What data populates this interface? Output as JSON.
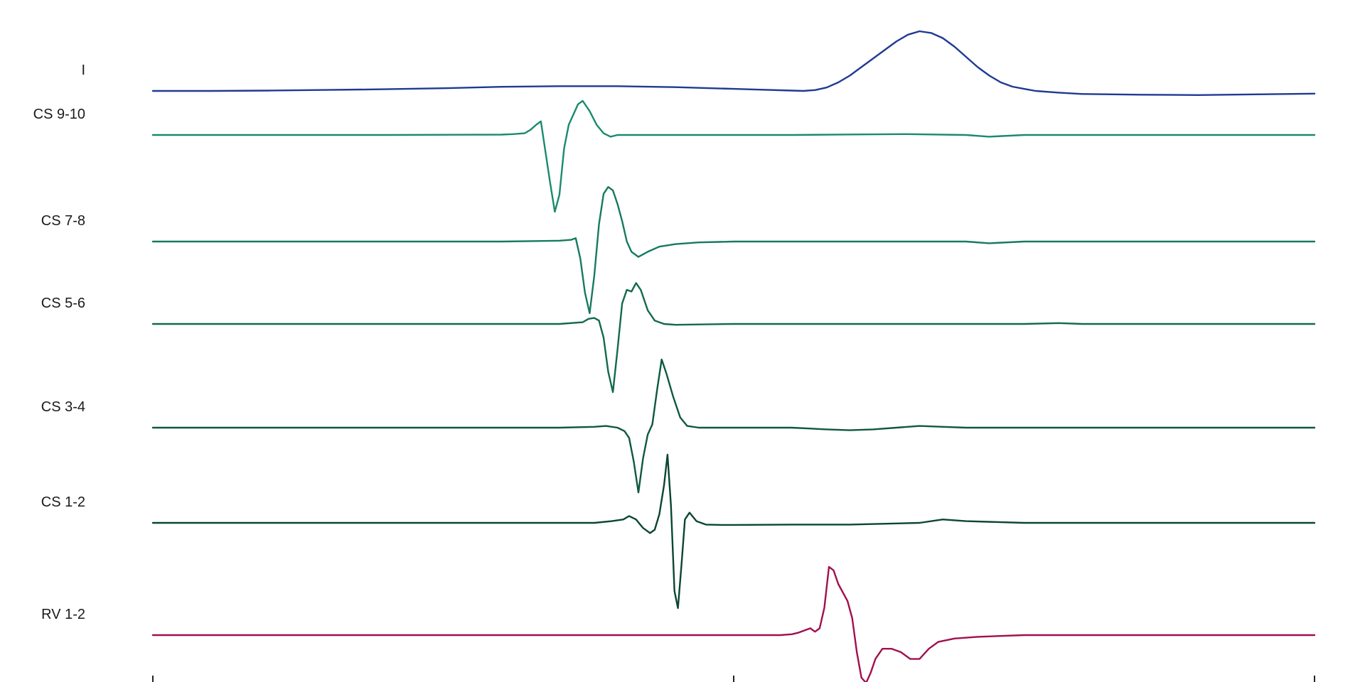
{
  "chart_data": {
    "type": "line",
    "title": "",
    "xlabel": "",
    "ylabel": "",
    "x_range": [
      0,
      1
    ],
    "x_ticks": [
      0,
      0.5,
      1
    ],
    "grid": false,
    "legend": "none",
    "tracks": [
      {
        "name": "I",
        "color": "#1f3a93",
        "points": [
          [
            0.0,
            0.0
          ],
          [
            0.05,
            0.0
          ],
          [
            0.1,
            0.2
          ],
          [
            0.15,
            0.6
          ],
          [
            0.2,
            1.0
          ],
          [
            0.25,
            1.6
          ],
          [
            0.3,
            2.4
          ],
          [
            0.35,
            2.8
          ],
          [
            0.4,
            2.8
          ],
          [
            0.45,
            2.2
          ],
          [
            0.5,
            1.2
          ],
          [
            0.52,
            0.8
          ],
          [
            0.55,
            0.2
          ],
          [
            0.56,
            0.0
          ],
          [
            0.57,
            0.5
          ],
          [
            0.58,
            2.0
          ],
          [
            0.59,
            5.0
          ],
          [
            0.6,
            9.0
          ],
          [
            0.61,
            14.0
          ],
          [
            0.62,
            19.0
          ],
          [
            0.63,
            24.0
          ],
          [
            0.64,
            29.0
          ],
          [
            0.65,
            33.0
          ],
          [
            0.66,
            35.0
          ],
          [
            0.67,
            34.0
          ],
          [
            0.68,
            31.0
          ],
          [
            0.69,
            26.0
          ],
          [
            0.7,
            20.0
          ],
          [
            0.71,
            14.0
          ],
          [
            0.72,
            9.0
          ],
          [
            0.73,
            5.0
          ],
          [
            0.74,
            2.5
          ],
          [
            0.75,
            1.2
          ],
          [
            0.76,
            0.0
          ],
          [
            0.78,
            -1.0
          ],
          [
            0.8,
            -1.8
          ],
          [
            0.85,
            -2.2
          ],
          [
            0.9,
            -2.4
          ],
          [
            0.95,
            -2.0
          ],
          [
            1.0,
            -1.6
          ]
        ]
      },
      {
        "name": "CS 9-10",
        "color": "#1a8a6e",
        "points": [
          [
            0.0,
            0.0
          ],
          [
            0.2,
            0.0
          ],
          [
            0.3,
            0.2
          ],
          [
            0.31,
            0.5
          ],
          [
            0.32,
            1.0
          ],
          [
            0.325,
            3.0
          ],
          [
            0.33,
            6.0
          ],
          [
            0.334,
            8.0
          ],
          [
            0.338,
            -10.0
          ],
          [
            0.342,
            -28.0
          ],
          [
            0.346,
            -45.0
          ],
          [
            0.35,
            -35.0
          ],
          [
            0.354,
            -8.0
          ],
          [
            0.358,
            6.0
          ],
          [
            0.362,
            12.0
          ],
          [
            0.366,
            18.0
          ],
          [
            0.37,
            20.0
          ],
          [
            0.376,
            14.0
          ],
          [
            0.382,
            6.0
          ],
          [
            0.388,
            1.0
          ],
          [
            0.394,
            -1.0
          ],
          [
            0.4,
            0.0
          ],
          [
            0.45,
            0.0
          ],
          [
            0.55,
            0.0
          ],
          [
            0.6,
            0.3
          ],
          [
            0.65,
            0.5
          ],
          [
            0.7,
            0.0
          ],
          [
            0.72,
            -1.0
          ],
          [
            0.75,
            0.0
          ],
          [
            0.85,
            0.0
          ],
          [
            1.0,
            0.0
          ]
        ]
      },
      {
        "name": "CS 7-8",
        "color": "#167a60",
        "points": [
          [
            0.0,
            0.0
          ],
          [
            0.3,
            0.0
          ],
          [
            0.35,
            0.5
          ],
          [
            0.36,
            1.0
          ],
          [
            0.364,
            2.0
          ],
          [
            0.368,
            -10.0
          ],
          [
            0.372,
            -30.0
          ],
          [
            0.376,
            -42.0
          ],
          [
            0.38,
            -20.0
          ],
          [
            0.384,
            10.0
          ],
          [
            0.388,
            28.0
          ],
          [
            0.392,
            32.0
          ],
          [
            0.396,
            30.0
          ],
          [
            0.4,
            22.0
          ],
          [
            0.404,
            12.0
          ],
          [
            0.408,
            0.0
          ],
          [
            0.412,
            -6.0
          ],
          [
            0.418,
            -9.0
          ],
          [
            0.426,
            -6.0
          ],
          [
            0.436,
            -3.0
          ],
          [
            0.45,
            -1.5
          ],
          [
            0.47,
            -0.5
          ],
          [
            0.5,
            0.0
          ],
          [
            0.55,
            0.0
          ],
          [
            0.6,
            0.0
          ],
          [
            0.65,
            0.0
          ],
          [
            0.7,
            0.0
          ],
          [
            0.72,
            -1.0
          ],
          [
            0.75,
            0.0
          ],
          [
            0.8,
            0.0
          ],
          [
            1.0,
            0.0
          ]
        ]
      },
      {
        "name": "CS 5-6",
        "color": "#12694f",
        "points": [
          [
            0.0,
            0.0
          ],
          [
            0.3,
            0.0
          ],
          [
            0.35,
            0.0
          ],
          [
            0.37,
            1.0
          ],
          [
            0.375,
            3.0
          ],
          [
            0.38,
            3.5
          ],
          [
            0.384,
            2.0
          ],
          [
            0.388,
            -8.0
          ],
          [
            0.392,
            -28.0
          ],
          [
            0.396,
            -40.0
          ],
          [
            0.4,
            -15.0
          ],
          [
            0.404,
            12.0
          ],
          [
            0.408,
            20.0
          ],
          [
            0.412,
            19.0
          ],
          [
            0.416,
            24.0
          ],
          [
            0.42,
            20.0
          ],
          [
            0.426,
            8.0
          ],
          [
            0.432,
            2.0
          ],
          [
            0.44,
            0.0
          ],
          [
            0.45,
            -0.5
          ],
          [
            0.5,
            0.0
          ],
          [
            0.55,
            0.0
          ],
          [
            0.6,
            0.0
          ],
          [
            0.7,
            0.0
          ],
          [
            0.75,
            0.0
          ],
          [
            0.78,
            0.5
          ],
          [
            0.8,
            0.0
          ],
          [
            1.0,
            0.0
          ]
        ]
      },
      {
        "name": "CS 3-4",
        "color": "#0e5842",
        "points": [
          [
            0.0,
            0.0
          ],
          [
            0.3,
            0.0
          ],
          [
            0.35,
            0.0
          ],
          [
            0.38,
            0.5
          ],
          [
            0.39,
            1.0
          ],
          [
            0.4,
            0.0
          ],
          [
            0.406,
            -2.0
          ],
          [
            0.41,
            -6.0
          ],
          [
            0.414,
            -20.0
          ],
          [
            0.418,
            -38.0
          ],
          [
            0.422,
            -18.0
          ],
          [
            0.426,
            -4.0
          ],
          [
            0.43,
            2.0
          ],
          [
            0.434,
            22.0
          ],
          [
            0.438,
            40.0
          ],
          [
            0.442,
            32.0
          ],
          [
            0.448,
            18.0
          ],
          [
            0.454,
            6.0
          ],
          [
            0.46,
            1.0
          ],
          [
            0.47,
            0.0
          ],
          [
            0.5,
            0.0
          ],
          [
            0.55,
            0.0
          ],
          [
            0.58,
            -1.0
          ],
          [
            0.6,
            -1.5
          ],
          [
            0.62,
            -1.0
          ],
          [
            0.64,
            0.0
          ],
          [
            0.66,
            1.0
          ],
          [
            0.68,
            0.5
          ],
          [
            0.7,
            0.0
          ],
          [
            0.8,
            0.0
          ],
          [
            1.0,
            0.0
          ]
        ]
      },
      {
        "name": "CS 1-2",
        "color": "#0a4632",
        "points": [
          [
            0.0,
            0.0
          ],
          [
            0.3,
            0.0
          ],
          [
            0.38,
            0.0
          ],
          [
            0.395,
            1.0
          ],
          [
            0.405,
            2.0
          ],
          [
            0.41,
            4.0
          ],
          [
            0.416,
            2.0
          ],
          [
            0.422,
            -3.0
          ],
          [
            0.428,
            -6.0
          ],
          [
            0.432,
            -4.0
          ],
          [
            0.436,
            5.0
          ],
          [
            0.44,
            22.0
          ],
          [
            0.443,
            40.0
          ],
          [
            0.446,
            10.0
          ],
          [
            0.449,
            -40.0
          ],
          [
            0.452,
            -50.0
          ],
          [
            0.455,
            -25.0
          ],
          [
            0.458,
            2.0
          ],
          [
            0.462,
            6.0
          ],
          [
            0.468,
            1.0
          ],
          [
            0.476,
            -1.0
          ],
          [
            0.49,
            -1.2
          ],
          [
            0.5,
            -1.2
          ],
          [
            0.55,
            -1.0
          ],
          [
            0.6,
            -1.0
          ],
          [
            0.66,
            0.0
          ],
          [
            0.68,
            2.0
          ],
          [
            0.7,
            1.0
          ],
          [
            0.75,
            0.0
          ],
          [
            0.8,
            0.0
          ],
          [
            1.0,
            0.0
          ]
        ]
      },
      {
        "name": "RV 1-2",
        "color": "#a0104f",
        "points": [
          [
            0.0,
            0.0
          ],
          [
            0.25,
            0.0
          ],
          [
            0.5,
            0.0
          ],
          [
            0.54,
            0.0
          ],
          [
            0.55,
            0.5
          ],
          [
            0.556,
            1.5
          ],
          [
            0.562,
            3.0
          ],
          [
            0.566,
            4.0
          ],
          [
            0.57,
            2.0
          ],
          [
            0.574,
            4.0
          ],
          [
            0.578,
            16.0
          ],
          [
            0.582,
            40.0
          ],
          [
            0.586,
            38.0
          ],
          [
            0.59,
            30.0
          ],
          [
            0.594,
            25.0
          ],
          [
            0.598,
            20.0
          ],
          [
            0.602,
            10.0
          ],
          [
            0.606,
            -10.0
          ],
          [
            0.61,
            -25.0
          ],
          [
            0.614,
            -28.0
          ],
          [
            0.618,
            -22.0
          ],
          [
            0.622,
            -14.0
          ],
          [
            0.628,
            -8.0
          ],
          [
            0.636,
            -8.0
          ],
          [
            0.644,
            -10.0
          ],
          [
            0.652,
            -14.0
          ],
          [
            0.66,
            -14.0
          ],
          [
            0.668,
            -8.0
          ],
          [
            0.676,
            -4.0
          ],
          [
            0.69,
            -2.0
          ],
          [
            0.71,
            -1.0
          ],
          [
            0.75,
            0.0
          ],
          [
            0.8,
            0.0
          ],
          [
            1.0,
            0.0
          ]
        ]
      }
    ]
  }
}
